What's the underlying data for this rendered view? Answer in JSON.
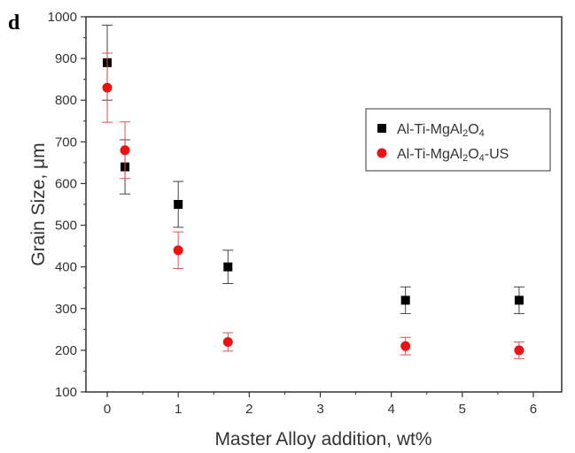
{
  "chart_data": {
    "type": "scatter",
    "panel_label": "d",
    "xlabel": "Master Alloy addition, wt%",
    "ylabel": "Grain Size, μm",
    "xlim": [
      -0.3,
      6.4
    ],
    "ylim": [
      100,
      1000
    ],
    "xticks": [
      "0",
      "1",
      "2",
      "3",
      "4",
      "5",
      "6"
    ],
    "yticks": [
      "100",
      "200",
      "300",
      "400",
      "500",
      "600",
      "700",
      "800",
      "900",
      "1000"
    ],
    "legend_position": "upper-right",
    "series": [
      {
        "name": "Al-Ti-MgAl2O4",
        "name_parts": [
          [
            "Al-Ti-MgAl",
            "n"
          ],
          [
            "2",
            "sub"
          ],
          [
            "O",
            "n"
          ],
          [
            "4",
            "sub"
          ]
        ],
        "marker": "square",
        "color": "#000000",
        "points": [
          {
            "x": 0,
            "y": 890,
            "err": 90
          },
          {
            "x": 0.25,
            "y": 640,
            "err": 65
          },
          {
            "x": 1,
            "y": 550,
            "err": 55
          },
          {
            "x": 1.7,
            "y": 400,
            "err": 40
          },
          {
            "x": 4.2,
            "y": 320,
            "err": 32
          },
          {
            "x": 5.8,
            "y": 320,
            "err": 32
          }
        ]
      },
      {
        "name": "Al-Ti-MgAl2O4-US",
        "name_parts": [
          [
            "Al-Ti-MgAl",
            "n"
          ],
          [
            "2",
            "sub"
          ],
          [
            "O",
            "n"
          ],
          [
            "4",
            "sub"
          ],
          [
            "-US",
            "n"
          ]
        ],
        "marker": "circle",
        "color": "#ee1111",
        "points": [
          {
            "x": 0,
            "y": 830,
            "err": 83
          },
          {
            "x": 0.25,
            "y": 680,
            "err": 68
          },
          {
            "x": 1,
            "y": 440,
            "err": 44
          },
          {
            "x": 1.7,
            "y": 220,
            "err": 22
          },
          {
            "x": 4.2,
            "y": 210,
            "err": 21
          },
          {
            "x": 5.8,
            "y": 200,
            "err": 20
          }
        ]
      }
    ]
  }
}
